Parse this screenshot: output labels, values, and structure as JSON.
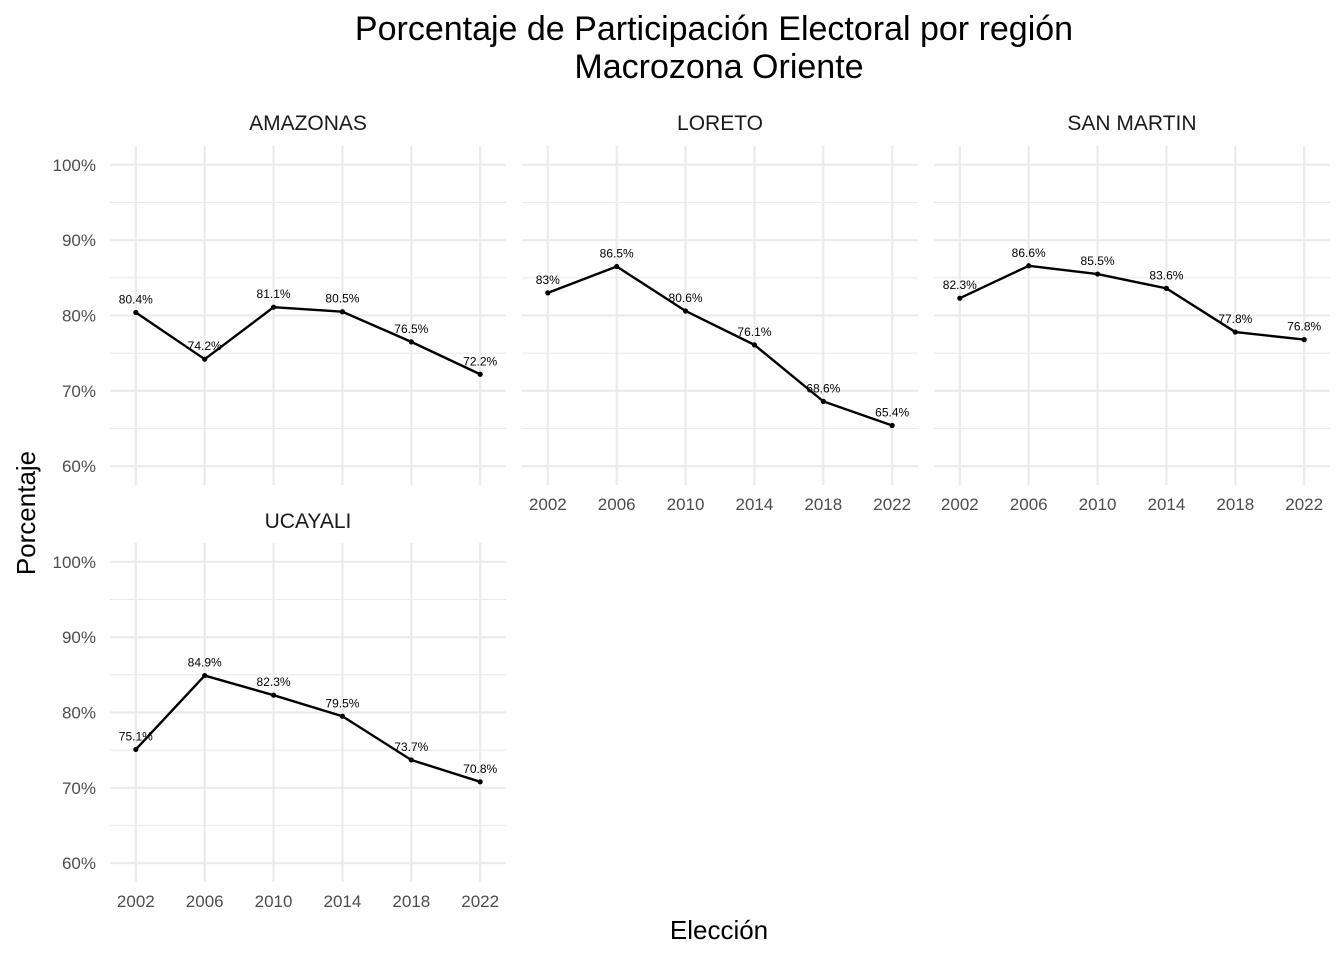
{
  "chart_data": {
    "type": "line",
    "title": "Porcentaje de Participación Electoral por región",
    "subtitle": "Macrozona Oriente",
    "xlabel": "Elección",
    "ylabel": "Porcentaje",
    "x": [
      2002,
      2006,
      2010,
      2014,
      2018,
      2022
    ],
    "x_tick_labels": [
      "2002",
      "2006",
      "2010",
      "2014",
      "2018",
      "2022"
    ],
    "ylim": [
      60,
      100
    ],
    "y_ticks": [
      60,
      70,
      80,
      90,
      100
    ],
    "y_tick_labels": [
      "60%",
      "70%",
      "80%",
      "90%",
      "100%"
    ],
    "grid": true,
    "panels": [
      {
        "name": "AMAZONAS",
        "values": [
          80.4,
          74.2,
          81.1,
          80.5,
          76.5,
          72.2
        ],
        "labels": [
          "80.4%",
          "74.2%",
          "81.1%",
          "80.5%",
          "76.5%",
          "72.2%"
        ]
      },
      {
        "name": "LORETO",
        "values": [
          83.0,
          86.5,
          80.6,
          76.1,
          68.6,
          65.4
        ],
        "labels": [
          "83%",
          "86.5%",
          "80.6%",
          "76.1%",
          "68.6%",
          "65.4%"
        ]
      },
      {
        "name": "SAN MARTIN",
        "values": [
          82.3,
          86.6,
          85.5,
          83.6,
          77.8,
          76.8
        ],
        "labels": [
          "82.3%",
          "86.6%",
          "85.5%",
          "83.6%",
          "77.8%",
          "76.8%"
        ]
      },
      {
        "name": "UCAYALI",
        "values": [
          75.1,
          84.9,
          82.3,
          79.5,
          73.7,
          70.8
        ],
        "labels": [
          "75.1%",
          "84.9%",
          "82.3%",
          "79.5%",
          "73.7%",
          "70.8%"
        ]
      }
    ]
  }
}
